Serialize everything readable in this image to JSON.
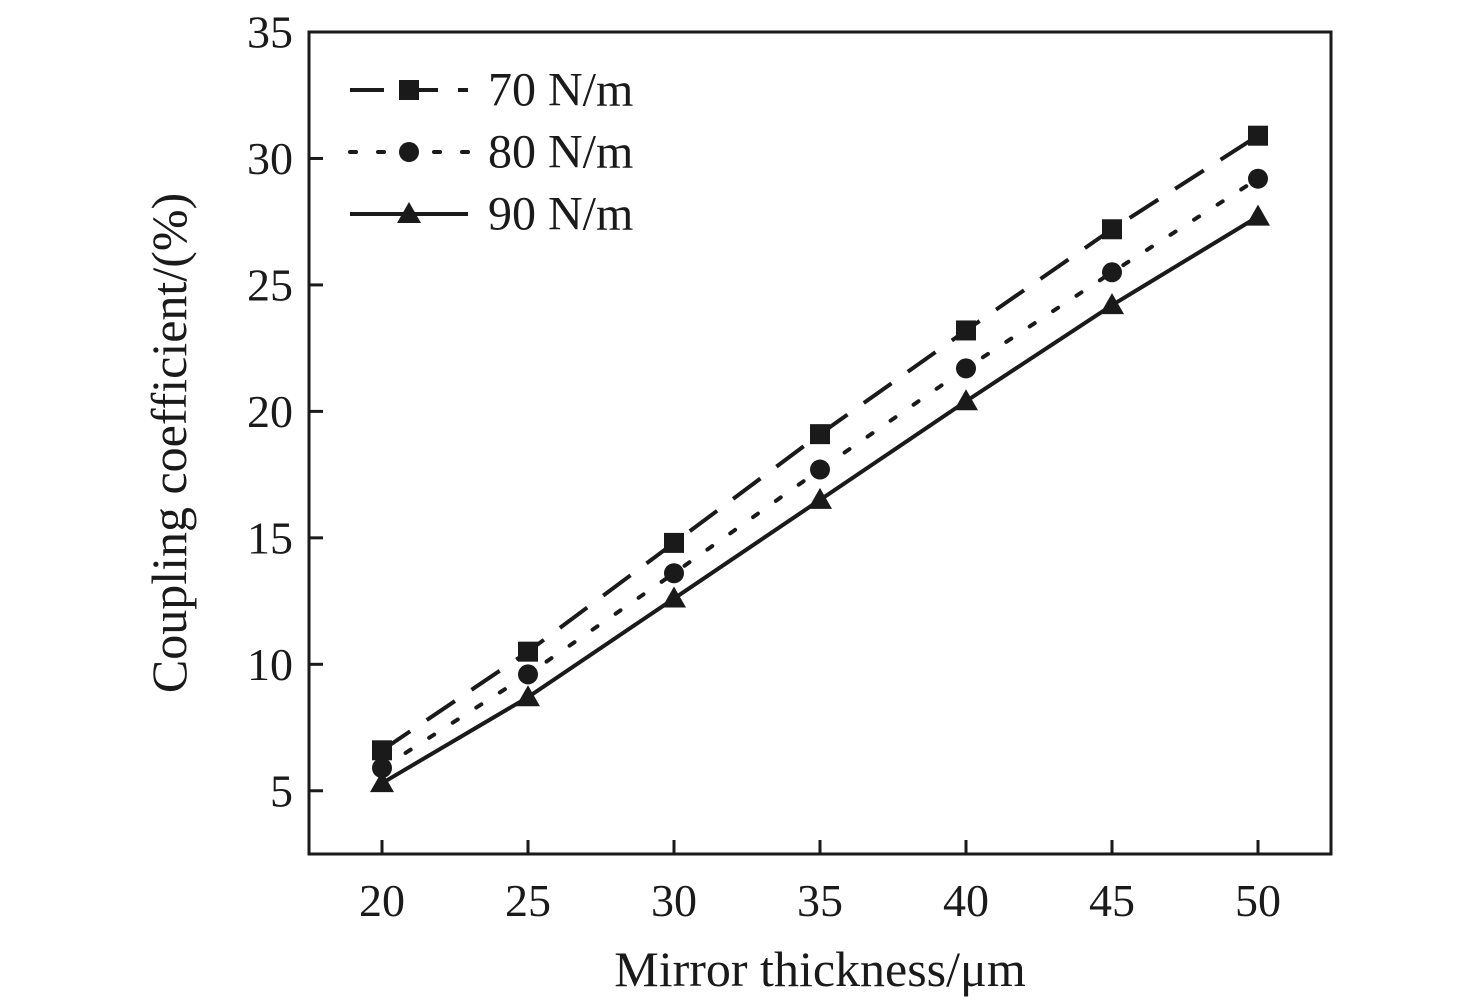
{
  "chart_data": {
    "type": "line",
    "xlabel": "Mirror thickness/μm",
    "ylabel": "Coupling coefficient/(%)",
    "x": [
      20,
      25,
      30,
      35,
      40,
      45,
      50
    ],
    "xlim": [
      17.5,
      52.5
    ],
    "ylim": [
      2.5,
      35
    ],
    "xticks": [
      "20",
      "25",
      "30",
      "35",
      "40",
      "45",
      "50"
    ],
    "yticks": [
      "5",
      "10",
      "15",
      "20",
      "25",
      "30",
      "35"
    ],
    "grid": false,
    "legend_position": "top-left",
    "series": [
      {
        "name": "70 N/m",
        "line_style": "dashed",
        "marker": "square",
        "values": [
          6.6,
          10.5,
          14.8,
          19.1,
          23.2,
          27.2,
          30.9
        ]
      },
      {
        "name": "80 N/m",
        "line_style": "dotted",
        "marker": "circle",
        "values": [
          5.9,
          9.6,
          13.6,
          17.7,
          21.7,
          25.5,
          29.2
        ]
      },
      {
        "name": "90 N/m",
        "line_style": "solid",
        "marker": "triangle",
        "values": [
          5.3,
          8.7,
          12.6,
          16.5,
          20.4,
          24.2,
          27.7
        ]
      }
    ],
    "colors": {
      "line": "#1a1a1a",
      "background": "#ffffff"
    }
  }
}
